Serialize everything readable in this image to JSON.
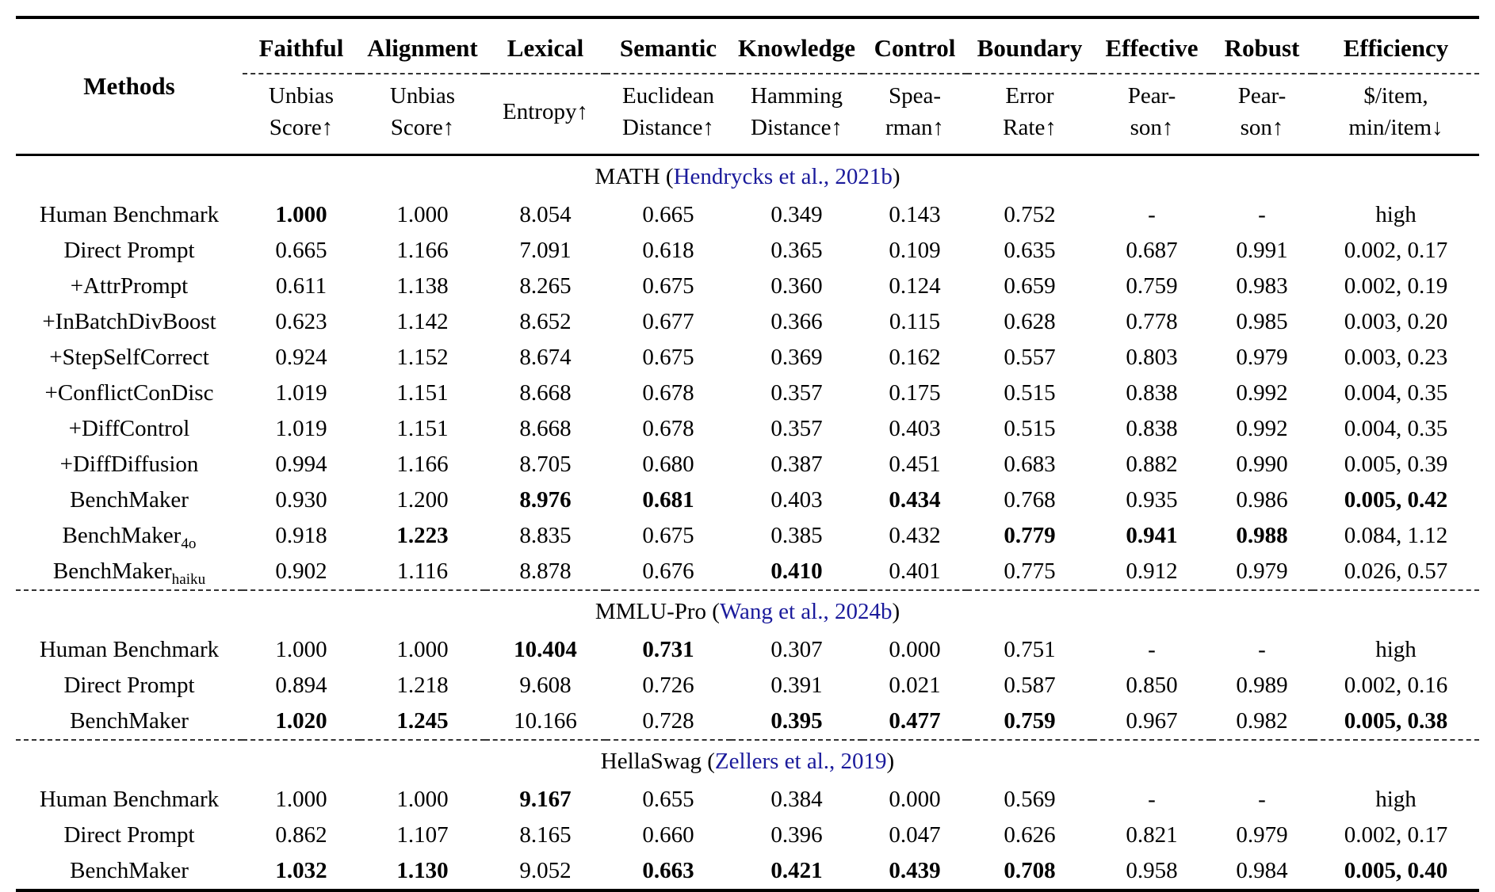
{
  "page": {
    "background_color": "#ffffff",
    "text_color": "#000000",
    "citation_color": "#1a1a9b"
  },
  "table": {
    "methods_header": "Methods",
    "columns": [
      {
        "group": "Faithful",
        "metric_lines": [
          "Unbias",
          "Score↑"
        ]
      },
      {
        "group": "Alignment",
        "metric_lines": [
          "Unbias",
          "Score↑"
        ]
      },
      {
        "group": "Lexical",
        "metric_lines": [
          "Entropy↑"
        ]
      },
      {
        "group": "Semantic",
        "metric_lines": [
          "Euclidean",
          "Distance↑"
        ]
      },
      {
        "group": "Knowledge",
        "metric_lines": [
          "Hamming",
          "Distance↑"
        ]
      },
      {
        "group": "Control",
        "metric_lines": [
          "Spea-",
          "rman↑"
        ]
      },
      {
        "group": "Boundary",
        "metric_lines": [
          "Error",
          "Rate↑"
        ]
      },
      {
        "group": "Effective",
        "metric_lines": [
          "Pear-",
          "son↑"
        ]
      },
      {
        "group": "Robust",
        "metric_lines": [
          "Pear-",
          "son↑"
        ]
      },
      {
        "group": "Efficiency",
        "metric_lines": [
          "$/item,",
          "min/item↓"
        ]
      }
    ],
    "sections": [
      {
        "title_pre": "MATH (",
        "citation": "Hendrycks et al., 2021b",
        "title_post": ")",
        "rows": [
          {
            "method": {
              "t": "Human Benchmark"
            },
            "cells": [
              {
                "t": "1.000",
                "b": true
              },
              {
                "t": "1.000"
              },
              {
                "t": "8.054"
              },
              {
                "t": "0.665"
              },
              {
                "t": "0.349"
              },
              {
                "t": "0.143"
              },
              {
                "t": "0.752"
              },
              {
                "t": "-"
              },
              {
                "t": "-"
              },
              {
                "t": "high"
              }
            ]
          },
          {
            "method": {
              "t": "Direct Prompt"
            },
            "cells": [
              {
                "t": "0.665"
              },
              {
                "t": "1.166"
              },
              {
                "t": "7.091"
              },
              {
                "t": "0.618"
              },
              {
                "t": "0.365"
              },
              {
                "t": "0.109"
              },
              {
                "t": "0.635"
              },
              {
                "t": "0.687"
              },
              {
                "t": "0.991"
              },
              {
                "t": "0.002, 0.17"
              }
            ]
          },
          {
            "method": {
              "t": "+AttrPrompt"
            },
            "cells": [
              {
                "t": "0.611"
              },
              {
                "t": "1.138"
              },
              {
                "t": "8.265"
              },
              {
                "t": "0.675"
              },
              {
                "t": "0.360"
              },
              {
                "t": "0.124"
              },
              {
                "t": "0.659"
              },
              {
                "t": "0.759"
              },
              {
                "t": "0.983"
              },
              {
                "t": "0.002, 0.19"
              }
            ]
          },
          {
            "method": {
              "t": "+InBatchDivBoost"
            },
            "cells": [
              {
                "t": "0.623"
              },
              {
                "t": "1.142"
              },
              {
                "t": "8.652"
              },
              {
                "t": "0.677"
              },
              {
                "t": "0.366"
              },
              {
                "t": "0.115"
              },
              {
                "t": "0.628"
              },
              {
                "t": "0.778"
              },
              {
                "t": "0.985"
              },
              {
                "t": "0.003, 0.20"
              }
            ]
          },
          {
            "method": {
              "t": "+StepSelfCorrect"
            },
            "cells": [
              {
                "t": "0.924"
              },
              {
                "t": "1.152"
              },
              {
                "t": "8.674"
              },
              {
                "t": "0.675"
              },
              {
                "t": "0.369"
              },
              {
                "t": "0.162"
              },
              {
                "t": "0.557"
              },
              {
                "t": "0.803"
              },
              {
                "t": "0.979"
              },
              {
                "t": "0.003, 0.23"
              }
            ]
          },
          {
            "method": {
              "t": "+ConflictConDisc"
            },
            "cells": [
              {
                "t": "1.019"
              },
              {
                "t": "1.151"
              },
              {
                "t": "8.668"
              },
              {
                "t": "0.678"
              },
              {
                "t": "0.357"
              },
              {
                "t": "0.175"
              },
              {
                "t": "0.515"
              },
              {
                "t": "0.838"
              },
              {
                "t": "0.992"
              },
              {
                "t": "0.004, 0.35"
              }
            ]
          },
          {
            "method": {
              "t": "+DiffControl"
            },
            "cells": [
              {
                "t": "1.019"
              },
              {
                "t": "1.151"
              },
              {
                "t": "8.668"
              },
              {
                "t": "0.678"
              },
              {
                "t": "0.357"
              },
              {
                "t": "0.403"
              },
              {
                "t": "0.515"
              },
              {
                "t": "0.838"
              },
              {
                "t": "0.992"
              },
              {
                "t": "0.004, 0.35"
              }
            ]
          },
          {
            "method": {
              "t": "+DiffDiffusion"
            },
            "cells": [
              {
                "t": "0.994"
              },
              {
                "t": "1.166"
              },
              {
                "t": "8.705"
              },
              {
                "t": "0.680"
              },
              {
                "t": "0.387"
              },
              {
                "t": "0.451"
              },
              {
                "t": "0.683"
              },
              {
                "t": "0.882"
              },
              {
                "t": "0.990"
              },
              {
                "t": "0.005, 0.39"
              }
            ]
          },
          {
            "method": {
              "t": "BenchMaker"
            },
            "cells": [
              {
                "t": "0.930"
              },
              {
                "t": "1.200"
              },
              {
                "t": "8.976",
                "b": true
              },
              {
                "t": "0.681",
                "b": true
              },
              {
                "t": "0.403"
              },
              {
                "t": "0.434",
                "b": true
              },
              {
                "t": "0.768"
              },
              {
                "t": "0.935"
              },
              {
                "t": "0.986"
              },
              {
                "t": "0.005, 0.42",
                "b": true
              }
            ]
          },
          {
            "method": {
              "t": "BenchMaker",
              "sub": "4o"
            },
            "cells": [
              {
                "t": "0.918"
              },
              {
                "t": "1.223",
                "b": true
              },
              {
                "t": "8.835"
              },
              {
                "t": "0.675"
              },
              {
                "t": "0.385"
              },
              {
                "t": "0.432"
              },
              {
                "t": "0.779",
                "b": true
              },
              {
                "t": "0.941",
                "b": true
              },
              {
                "t": "0.988",
                "b": true
              },
              {
                "t": "0.084, 1.12"
              }
            ]
          },
          {
            "method": {
              "t": "BenchMaker",
              "sub": "haiku"
            },
            "cells": [
              {
                "t": "0.902"
              },
              {
                "t": "1.116"
              },
              {
                "t": "8.878"
              },
              {
                "t": "0.676"
              },
              {
                "t": "0.410",
                "b": true
              },
              {
                "t": "0.401"
              },
              {
                "t": "0.775"
              },
              {
                "t": "0.912"
              },
              {
                "t": "0.979"
              },
              {
                "t": "0.026, 0.57"
              }
            ]
          }
        ]
      },
      {
        "title_pre": "MMLU-Pro (",
        "citation": "Wang et al., 2024b",
        "title_post": ")",
        "rows": [
          {
            "method": {
              "t": "Human Benchmark"
            },
            "cells": [
              {
                "t": "1.000"
              },
              {
                "t": "1.000"
              },
              {
                "t": "10.404",
                "b": true
              },
              {
                "t": "0.731",
                "b": true
              },
              {
                "t": "0.307"
              },
              {
                "t": "0.000"
              },
              {
                "t": "0.751"
              },
              {
                "t": "-"
              },
              {
                "t": "-"
              },
              {
                "t": "high"
              }
            ]
          },
          {
            "method": {
              "t": "Direct Prompt"
            },
            "cells": [
              {
                "t": "0.894"
              },
              {
                "t": "1.218"
              },
              {
                "t": "9.608"
              },
              {
                "t": "0.726"
              },
              {
                "t": "0.391"
              },
              {
                "t": "0.021"
              },
              {
                "t": "0.587"
              },
              {
                "t": "0.850"
              },
              {
                "t": "0.989"
              },
              {
                "t": "0.002, 0.16"
              }
            ]
          },
          {
            "method": {
              "t": "BenchMaker"
            },
            "cells": [
              {
                "t": "1.020",
                "b": true
              },
              {
                "t": "1.245",
                "b": true
              },
              {
                "t": "10.166"
              },
              {
                "t": "0.728"
              },
              {
                "t": "0.395",
                "b": true
              },
              {
                "t": "0.477",
                "b": true
              },
              {
                "t": "0.759",
                "b": true
              },
              {
                "t": "0.967"
              },
              {
                "t": "0.982"
              },
              {
                "t": "0.005, 0.38",
                "b": true
              }
            ]
          }
        ]
      },
      {
        "title_pre": "HellaSwag (",
        "citation": "Zellers et al., 2019",
        "title_post": ")",
        "rows": [
          {
            "method": {
              "t": "Human Benchmark"
            },
            "cells": [
              {
                "t": "1.000"
              },
              {
                "t": "1.000"
              },
              {
                "t": "9.167",
                "b": true
              },
              {
                "t": "0.655"
              },
              {
                "t": "0.384"
              },
              {
                "t": "0.000"
              },
              {
                "t": "0.569"
              },
              {
                "t": "-"
              },
              {
                "t": "-"
              },
              {
                "t": "high"
              }
            ]
          },
          {
            "method": {
              "t": "Direct Prompt"
            },
            "cells": [
              {
                "t": "0.862"
              },
              {
                "t": "1.107"
              },
              {
                "t": "8.165"
              },
              {
                "t": "0.660"
              },
              {
                "t": "0.396"
              },
              {
                "t": "0.047"
              },
              {
                "t": "0.626"
              },
              {
                "t": "0.821"
              },
              {
                "t": "0.979"
              },
              {
                "t": "0.002, 0.17"
              }
            ]
          },
          {
            "method": {
              "t": "BenchMaker"
            },
            "cells": [
              {
                "t": "1.032",
                "b": true
              },
              {
                "t": "1.130",
                "b": true
              },
              {
                "t": "9.052"
              },
              {
                "t": "0.663",
                "b": true
              },
              {
                "t": "0.421",
                "b": true
              },
              {
                "t": "0.439",
                "b": true
              },
              {
                "t": "0.708",
                "b": true
              },
              {
                "t": "0.958"
              },
              {
                "t": "0.984"
              },
              {
                "t": "0.005, 0.40",
                "b": true
              }
            ]
          }
        ]
      }
    ]
  }
}
